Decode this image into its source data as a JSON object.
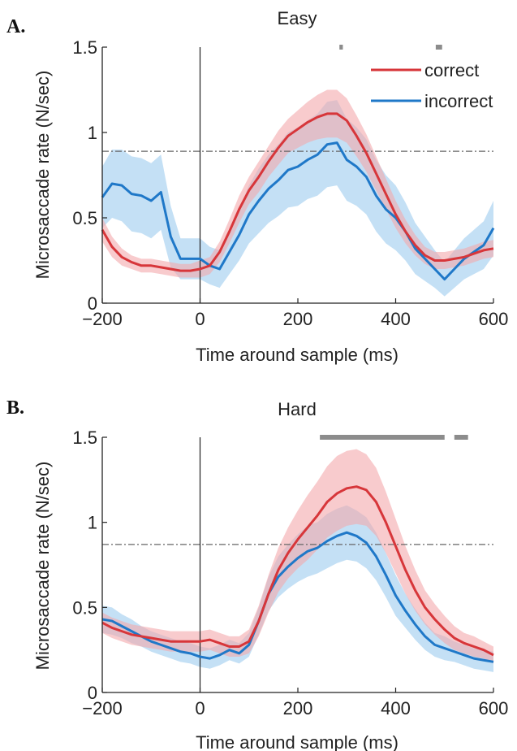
{
  "colors": {
    "correct": "#d7363a",
    "incorrect": "#1f78c8",
    "correct_band": "#f4a9ab",
    "incorrect_band": "#9ccbef",
    "sig_bar": "#8c8c8c",
    "threshold": "#666666"
  },
  "chart_data": [
    {
      "panel": "A.",
      "type": "line",
      "title": "Easy",
      "xlabel": "Time around sample (ms)",
      "ylabel": "Microsaccade rate (N/sec)",
      "xlim": [
        -200,
        600
      ],
      "ylim": [
        0,
        1.5
      ],
      "xticks": [
        -200,
        0,
        200,
        400,
        600
      ],
      "yticks": [
        0,
        0.5,
        1,
        1.5
      ],
      "ytick_labels": [
        "0",
        "0.5",
        "1",
        "1.5"
      ],
      "vline_x": 0,
      "threshold_y": 0.89,
      "legend": {
        "placement": "top-right",
        "entries": [
          "correct",
          "incorrect"
        ]
      },
      "significance_bars": [
        [
          285,
          292
        ],
        [
          482,
          495
        ]
      ],
      "series": [
        {
          "name": "correct",
          "x": [
            -200,
            -180,
            -160,
            -140,
            -120,
            -100,
            -80,
            -60,
            -40,
            -20,
            0,
            20,
            40,
            60,
            80,
            100,
            120,
            140,
            160,
            180,
            200,
            220,
            240,
            260,
            280,
            300,
            320,
            340,
            360,
            380,
            400,
            420,
            440,
            460,
            480,
            500,
            520,
            540,
            560,
            580,
            600
          ],
          "values": [
            0.43,
            0.33,
            0.27,
            0.24,
            0.22,
            0.22,
            0.21,
            0.2,
            0.19,
            0.19,
            0.2,
            0.22,
            0.3,
            0.42,
            0.55,
            0.66,
            0.74,
            0.83,
            0.91,
            0.98,
            1.02,
            1.06,
            1.09,
            1.11,
            1.11,
            1.07,
            0.98,
            0.88,
            0.76,
            0.64,
            0.52,
            0.42,
            0.34,
            0.28,
            0.25,
            0.25,
            0.26,
            0.27,
            0.29,
            0.31,
            0.32
          ],
          "band_half_width": [
            0.07,
            0.06,
            0.05,
            0.04,
            0.04,
            0.04,
            0.04,
            0.04,
            0.04,
            0.04,
            0.05,
            0.05,
            0.06,
            0.07,
            0.08,
            0.08,
            0.09,
            0.09,
            0.1,
            0.1,
            0.11,
            0.12,
            0.13,
            0.14,
            0.14,
            0.13,
            0.12,
            0.11,
            0.1,
            0.09,
            0.08,
            0.07,
            0.06,
            0.05,
            0.05,
            0.05,
            0.05,
            0.05,
            0.05,
            0.05,
            0.05
          ]
        },
        {
          "name": "incorrect",
          "x": [
            -200,
            -180,
            -160,
            -140,
            -120,
            -100,
            -80,
            -60,
            -40,
            -20,
            0,
            20,
            40,
            60,
            80,
            100,
            120,
            140,
            160,
            180,
            200,
            220,
            240,
            260,
            280,
            300,
            320,
            340,
            360,
            380,
            400,
            420,
            440,
            460,
            480,
            500,
            520,
            540,
            560,
            580,
            600
          ],
          "values": [
            0.62,
            0.7,
            0.69,
            0.64,
            0.63,
            0.6,
            0.65,
            0.39,
            0.26,
            0.26,
            0.26,
            0.22,
            0.2,
            0.3,
            0.4,
            0.52,
            0.6,
            0.67,
            0.72,
            0.78,
            0.8,
            0.84,
            0.87,
            0.93,
            0.94,
            0.84,
            0.8,
            0.74,
            0.63,
            0.55,
            0.5,
            0.42,
            0.32,
            0.26,
            0.2,
            0.14,
            0.2,
            0.26,
            0.3,
            0.34,
            0.44
          ],
          "band_half_width": [
            0.18,
            0.2,
            0.21,
            0.22,
            0.22,
            0.22,
            0.22,
            0.18,
            0.12,
            0.12,
            0.12,
            0.11,
            0.11,
            0.13,
            0.15,
            0.17,
            0.19,
            0.2,
            0.21,
            0.22,
            0.23,
            0.23,
            0.24,
            0.25,
            0.25,
            0.24,
            0.23,
            0.22,
            0.21,
            0.2,
            0.19,
            0.17,
            0.15,
            0.13,
            0.11,
            0.1,
            0.11,
            0.12,
            0.13,
            0.14,
            0.16
          ]
        }
      ]
    },
    {
      "panel": "B.",
      "type": "line",
      "title": "Hard",
      "xlabel": "Time around sample (ms)",
      "ylabel": "Microsaccade rate (N/sec)",
      "xlim": [
        -200,
        600
      ],
      "ylim": [
        0,
        1.5
      ],
      "xticks": [
        -200,
        0,
        200,
        400,
        600
      ],
      "yticks": [
        0,
        0.5,
        1,
        1.5
      ],
      "ytick_labels": [
        "0",
        "0.5",
        "1",
        "1.5"
      ],
      "vline_x": 0,
      "threshold_y": 0.87,
      "significance_bars": [
        [
          245,
          500
        ],
        [
          520,
          548
        ]
      ],
      "series": [
        {
          "name": "correct",
          "x": [
            -200,
            -180,
            -160,
            -140,
            -120,
            -100,
            -80,
            -60,
            -40,
            -20,
            0,
            20,
            40,
            60,
            80,
            100,
            120,
            140,
            160,
            180,
            200,
            220,
            240,
            260,
            280,
            300,
            320,
            340,
            360,
            380,
            400,
            420,
            440,
            460,
            480,
            500,
            520,
            540,
            560,
            580,
            600
          ],
          "values": [
            0.41,
            0.38,
            0.36,
            0.34,
            0.33,
            0.32,
            0.31,
            0.3,
            0.3,
            0.3,
            0.3,
            0.31,
            0.29,
            0.27,
            0.27,
            0.3,
            0.42,
            0.58,
            0.72,
            0.82,
            0.9,
            0.97,
            1.04,
            1.12,
            1.17,
            1.2,
            1.21,
            1.19,
            1.12,
            1.0,
            0.86,
            0.72,
            0.6,
            0.5,
            0.43,
            0.37,
            0.32,
            0.29,
            0.27,
            0.25,
            0.22
          ],
          "band_half_width": [
            0.06,
            0.06,
            0.06,
            0.06,
            0.06,
            0.06,
            0.06,
            0.06,
            0.06,
            0.06,
            0.06,
            0.06,
            0.06,
            0.06,
            0.06,
            0.07,
            0.09,
            0.11,
            0.13,
            0.15,
            0.17,
            0.19,
            0.2,
            0.21,
            0.22,
            0.22,
            0.22,
            0.21,
            0.2,
            0.18,
            0.16,
            0.14,
            0.12,
            0.1,
            0.09,
            0.08,
            0.07,
            0.06,
            0.06,
            0.05,
            0.05
          ]
        },
        {
          "name": "incorrect",
          "x": [
            -200,
            -180,
            -160,
            -140,
            -120,
            -100,
            -80,
            -60,
            -40,
            -20,
            0,
            20,
            40,
            60,
            80,
            100,
            120,
            140,
            160,
            180,
            200,
            220,
            240,
            260,
            280,
            300,
            320,
            340,
            360,
            380,
            400,
            420,
            440,
            460,
            480,
            500,
            520,
            540,
            560,
            580,
            600
          ],
          "values": [
            0.43,
            0.42,
            0.39,
            0.36,
            0.33,
            0.3,
            0.28,
            0.26,
            0.24,
            0.23,
            0.21,
            0.2,
            0.22,
            0.25,
            0.23,
            0.28,
            0.42,
            0.58,
            0.68,
            0.74,
            0.79,
            0.83,
            0.85,
            0.89,
            0.92,
            0.94,
            0.92,
            0.88,
            0.8,
            0.69,
            0.57,
            0.48,
            0.4,
            0.33,
            0.28,
            0.26,
            0.24,
            0.22,
            0.2,
            0.19,
            0.18
          ],
          "band_half_width": [
            0.08,
            0.08,
            0.07,
            0.07,
            0.06,
            0.06,
            0.06,
            0.06,
            0.06,
            0.06,
            0.06,
            0.06,
            0.06,
            0.06,
            0.06,
            0.07,
            0.08,
            0.1,
            0.12,
            0.13,
            0.14,
            0.15,
            0.15,
            0.16,
            0.16,
            0.16,
            0.15,
            0.15,
            0.14,
            0.13,
            0.12,
            0.1,
            0.09,
            0.08,
            0.07,
            0.07,
            0.06,
            0.06,
            0.06,
            0.06,
            0.06
          ]
        }
      ]
    }
  ]
}
